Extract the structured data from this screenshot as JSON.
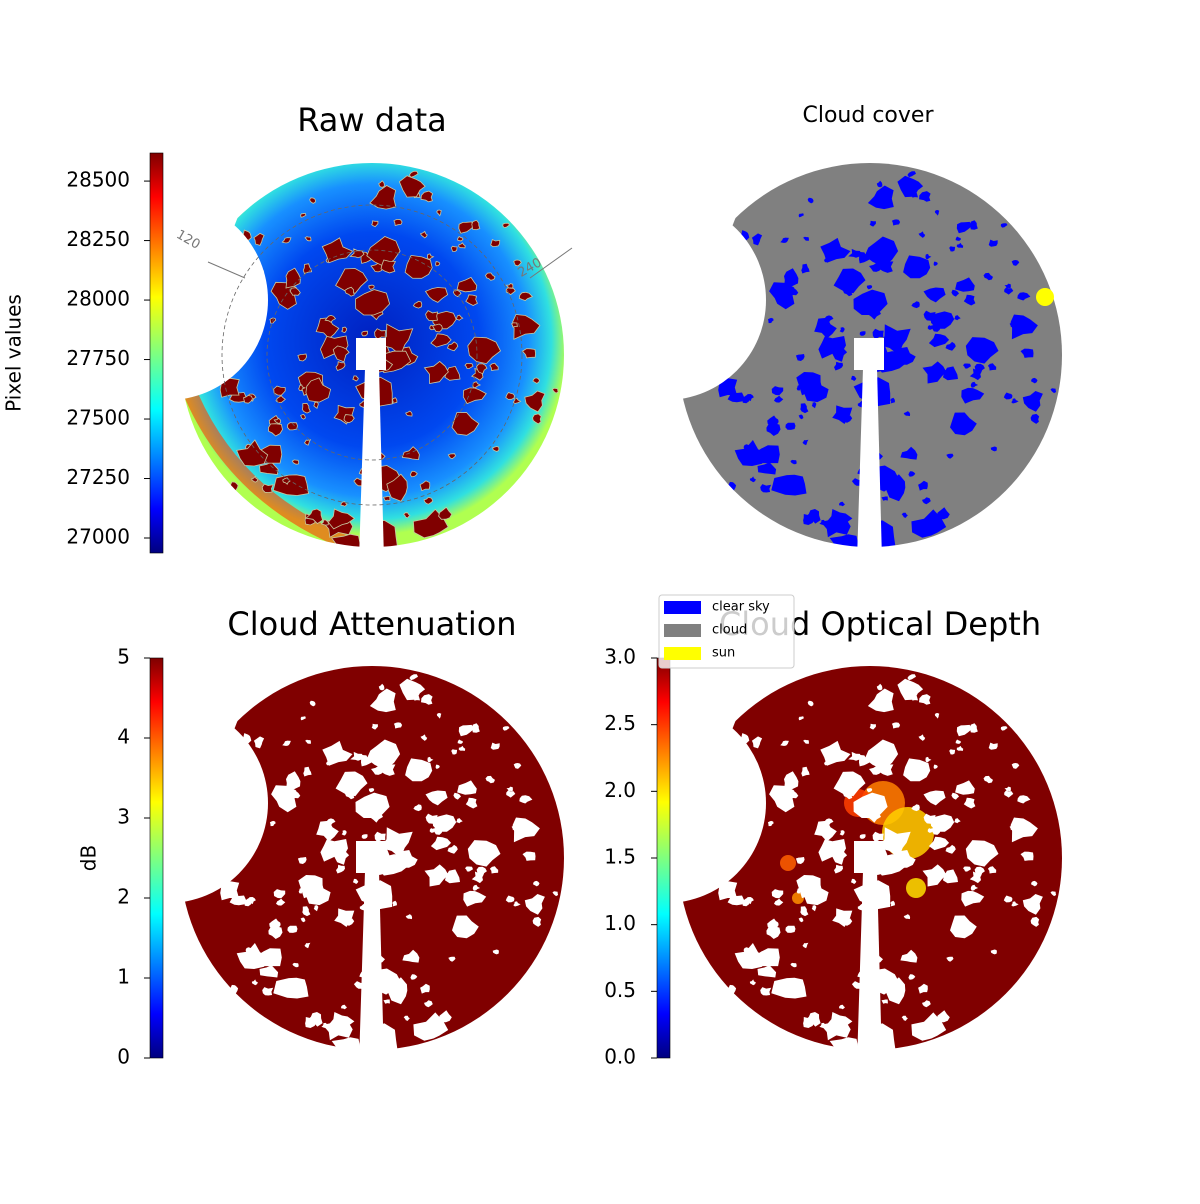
{
  "chart_data": [
    {
      "type": "image",
      "title": "Raw data",
      "colorbar": {
        "label": "Pixel values",
        "lim": [
          26937,
          28618
        ],
        "ticks": [
          27000,
          27250,
          27500,
          27750,
          28000,
          28250,
          28500
        ]
      },
      "annotations": [
        "120",
        "240"
      ]
    },
    {
      "type": "image",
      "title": "Cloud cover",
      "legend": {
        "entries": [
          {
            "name": "clear sky",
            "color": "#0000ff"
          },
          {
            "name": "cloud",
            "color": "#808080"
          },
          {
            "name": "sun",
            "color": "#ffff00"
          }
        ]
      }
    },
    {
      "type": "image",
      "title": "Cloud Attenuation",
      "colorbar": {
        "label": "dB",
        "lim": [
          0,
          5
        ],
        "ticks": [
          0,
          1,
          2,
          3,
          4,
          5
        ]
      }
    },
    {
      "type": "image",
      "title": "Cloud Optical Depth",
      "colorbar": {
        "lim": [
          0,
          3
        ],
        "ticks": [
          {
            "value": 0,
            "label": "0.0"
          },
          {
            "value": 0.5,
            "label": "0.5"
          },
          {
            "value": 1,
            "label": "1.0"
          },
          {
            "value": 1.5,
            "label": "1.5"
          },
          {
            "value": 2,
            "label": "2.0"
          },
          {
            "value": 2.5,
            "label": "2.5"
          },
          {
            "value": 3,
            "label": "3.0"
          }
        ]
      }
    }
  ]
}
